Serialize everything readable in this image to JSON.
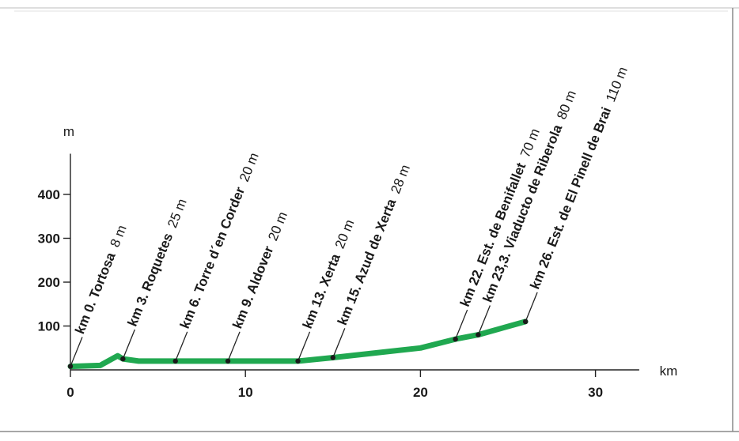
{
  "chart_data": {
    "type": "line",
    "title": "",
    "xlabel": "km",
    "ylabel": "m",
    "xlim": [
      0,
      32.5
    ],
    "ylim": [
      0,
      500
    ],
    "x_ticks": [
      "0",
      "10",
      "20",
      "30"
    ],
    "y_ticks": [
      "100",
      "200",
      "300",
      "400"
    ],
    "grid": false,
    "line_color": "#20a850",
    "profile": [
      {
        "x": 0,
        "y": 8
      },
      {
        "x": 1.7,
        "y": 10
      },
      {
        "x": 2.7,
        "y": 32
      },
      {
        "x": 3,
        "y": 25
      },
      {
        "x": 3.9,
        "y": 20
      },
      {
        "x": 6,
        "y": 20
      },
      {
        "x": 9,
        "y": 20
      },
      {
        "x": 13,
        "y": 20
      },
      {
        "x": 15,
        "y": 28
      },
      {
        "x": 20,
        "y": 50
      },
      {
        "x": 22,
        "y": 70
      },
      {
        "x": 23.3,
        "y": 80
      },
      {
        "x": 26,
        "y": 110
      }
    ],
    "stops": [
      {
        "km": 0,
        "elev": 8,
        "name": "km 0. Tortosa",
        "elev_label": "8 m"
      },
      {
        "km": 3,
        "elev": 25,
        "name": "km 3. Roquetes",
        "elev_label": "25 m"
      },
      {
        "km": 6,
        "elev": 20,
        "name": "km 6. Torre d´en Corder",
        "elev_label": "20 m"
      },
      {
        "km": 9,
        "elev": 20,
        "name": "km 9. Aldover",
        "elev_label": "20 m"
      },
      {
        "km": 13,
        "elev": 20,
        "name": "km 13. Xerta",
        "elev_label": "20 m"
      },
      {
        "km": 15,
        "elev": 28,
        "name": "km 15. Azud de Xerta",
        "elev_label": "28 m"
      },
      {
        "km": 22,
        "elev": 70,
        "name": "km 22. Est. de Benifallet",
        "elev_label": "70 m"
      },
      {
        "km": 23.3,
        "elev": 80,
        "name": "km 23,3. Viaducto de Riberola",
        "elev_label": "80 m"
      },
      {
        "km": 26,
        "elev": 110,
        "name": "km 26. Est. de El Pinell de Brai",
        "elev_label": "110 m"
      }
    ]
  }
}
